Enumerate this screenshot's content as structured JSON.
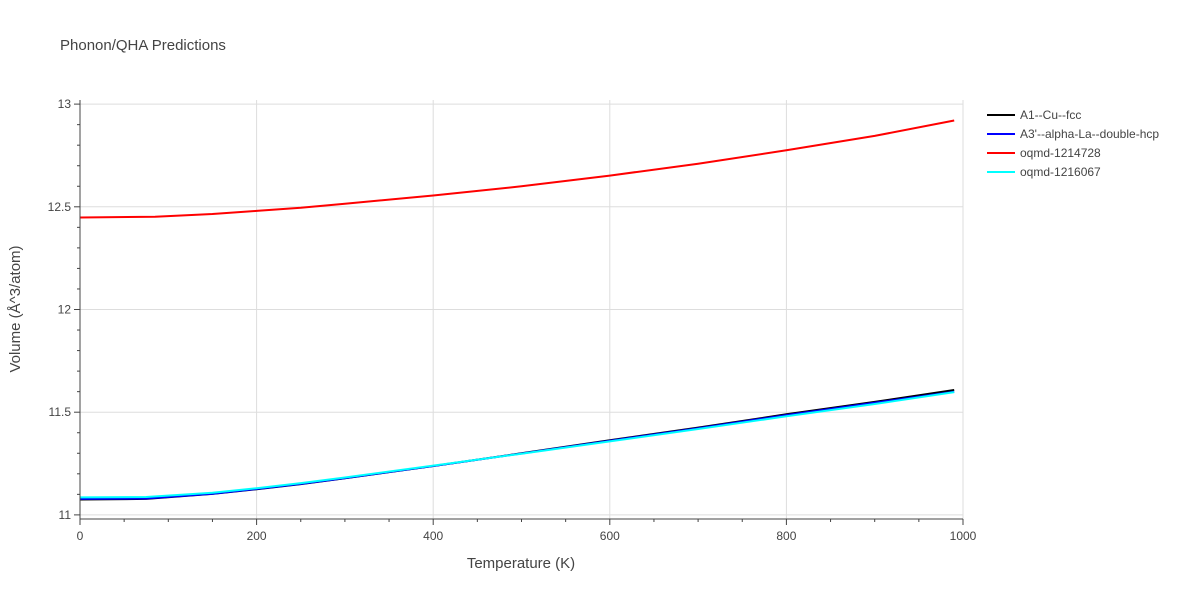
{
  "chart_data": {
    "type": "line",
    "title": "Phonon/QHA Predictions",
    "xlabel": "Temperature (K)",
    "ylabel": "Volume (Å^3/atom)",
    "xlim": [
      0,
      1000
    ],
    "ylim": [
      10.98,
      13.02
    ],
    "xticks": [
      0,
      200,
      400,
      600,
      800,
      1000
    ],
    "yticks": [
      11,
      11.5,
      12,
      12.5,
      13
    ],
    "grid": true,
    "legend_position": "right",
    "series": [
      {
        "name": "A1--Cu--fcc",
        "color": "#000000",
        "x": [
          0,
          75,
          150,
          200,
          250,
          300,
          400,
          500,
          600,
          700,
          800,
          900,
          990
        ],
        "y": [
          11.075,
          11.078,
          11.102,
          11.125,
          11.15,
          11.178,
          11.238,
          11.3,
          11.363,
          11.425,
          11.49,
          11.55,
          11.608
        ]
      },
      {
        "name": "A3'--alpha-La--double-hcp",
        "color": "#0000ff",
        "x": [
          0,
          75,
          150,
          200,
          250,
          300,
          400,
          500,
          600,
          700,
          800,
          900,
          990
        ],
        "y": [
          11.078,
          11.08,
          11.103,
          11.126,
          11.151,
          11.179,
          11.238,
          11.299,
          11.361,
          11.422,
          11.486,
          11.546,
          11.6
        ]
      },
      {
        "name": "oqmd-1214728",
        "color": "#ff0000",
        "x": [
          0,
          85,
          150,
          200,
          250,
          300,
          400,
          500,
          600,
          700,
          800,
          900,
          990
        ],
        "y": [
          12.448,
          12.452,
          12.465,
          12.48,
          12.495,
          12.515,
          12.555,
          12.6,
          12.652,
          12.71,
          12.775,
          12.845,
          12.92
        ]
      },
      {
        "name": "oqmd-1216067",
        "color": "#00ffff",
        "x": [
          0,
          75,
          150,
          200,
          250,
          300,
          400,
          500,
          600,
          700,
          800,
          900,
          990
        ],
        "y": [
          11.085,
          11.087,
          11.108,
          11.13,
          11.155,
          11.182,
          11.24,
          11.298,
          11.358,
          11.418,
          11.48,
          11.54,
          11.598
        ]
      }
    ]
  }
}
